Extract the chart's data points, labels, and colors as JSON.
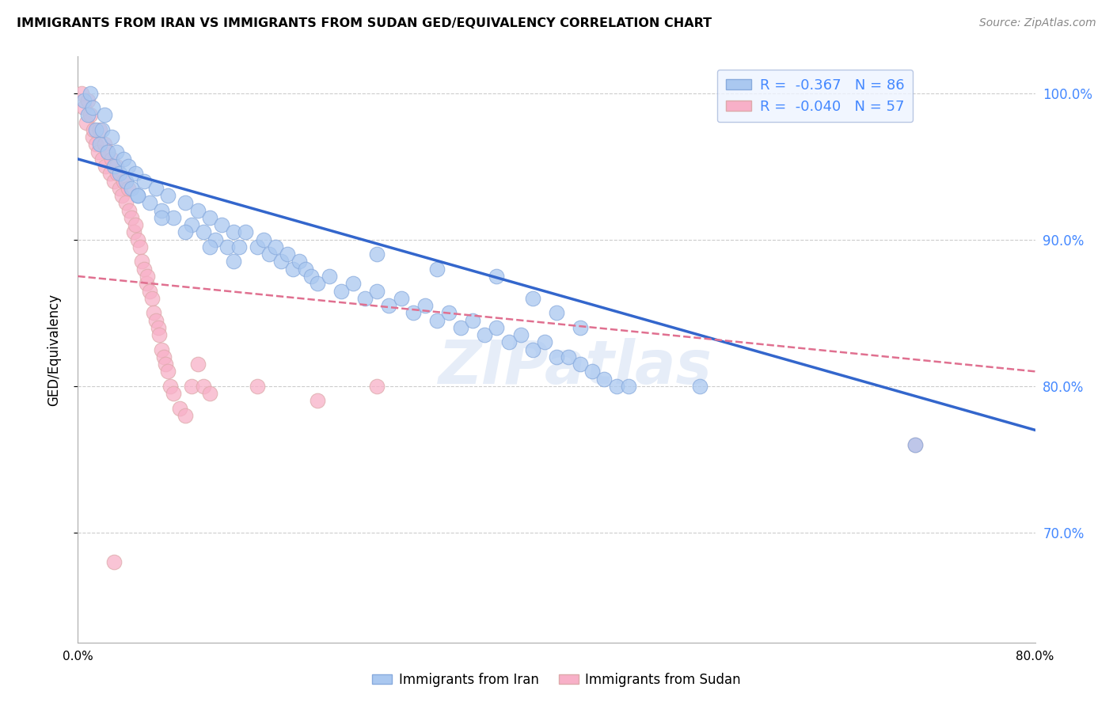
{
  "title": "IMMIGRANTS FROM IRAN VS IMMIGRANTS FROM SUDAN GED/EQUIVALENCY CORRELATION CHART",
  "source": "Source: ZipAtlas.com",
  "ylabel": "GED/Equivalency",
  "yticks": [
    0.7,
    0.8,
    0.9,
    1.0
  ],
  "ytick_labels": [
    "70.0%",
    "80.0%",
    "90.0%",
    "100.0%"
  ],
  "xlim": [
    0.0,
    0.8
  ],
  "ylim": [
    0.625,
    1.025
  ],
  "iran_R": -0.367,
  "iran_N": 86,
  "sudan_R": -0.04,
  "sudan_N": 57,
  "iran_color": "#aac8f0",
  "iran_edge_color": "#88aadd",
  "iran_line_color": "#3366cc",
  "sudan_color": "#f8b0c8",
  "sudan_edge_color": "#ddaaaa",
  "sudan_line_color": "#e07090",
  "iran_scatter_x": [
    0.005,
    0.008,
    0.01,
    0.012,
    0.015,
    0.018,
    0.02,
    0.022,
    0.025,
    0.028,
    0.03,
    0.032,
    0.035,
    0.038,
    0.04,
    0.042,
    0.045,
    0.048,
    0.05,
    0.055,
    0.06,
    0.065,
    0.07,
    0.075,
    0.08,
    0.09,
    0.095,
    0.1,
    0.105,
    0.11,
    0.115,
    0.12,
    0.125,
    0.13,
    0.135,
    0.14,
    0.15,
    0.155,
    0.16,
    0.165,
    0.17,
    0.175,
    0.18,
    0.185,
    0.19,
    0.195,
    0.2,
    0.21,
    0.22,
    0.23,
    0.24,
    0.25,
    0.26,
    0.27,
    0.28,
    0.29,
    0.3,
    0.31,
    0.32,
    0.33,
    0.34,
    0.35,
    0.36,
    0.37,
    0.38,
    0.39,
    0.4,
    0.41,
    0.42,
    0.43,
    0.44,
    0.45,
    0.46,
    0.25,
    0.3,
    0.35,
    0.38,
    0.4,
    0.42,
    0.05,
    0.07,
    0.09,
    0.11,
    0.13,
    0.7,
    0.52
  ],
  "iran_scatter_y": [
    0.995,
    0.985,
    1.0,
    0.99,
    0.975,
    0.965,
    0.975,
    0.985,
    0.96,
    0.97,
    0.95,
    0.96,
    0.945,
    0.955,
    0.94,
    0.95,
    0.935,
    0.945,
    0.93,
    0.94,
    0.925,
    0.935,
    0.92,
    0.93,
    0.915,
    0.925,
    0.91,
    0.92,
    0.905,
    0.915,
    0.9,
    0.91,
    0.895,
    0.905,
    0.895,
    0.905,
    0.895,
    0.9,
    0.89,
    0.895,
    0.885,
    0.89,
    0.88,
    0.885,
    0.88,
    0.875,
    0.87,
    0.875,
    0.865,
    0.87,
    0.86,
    0.865,
    0.855,
    0.86,
    0.85,
    0.855,
    0.845,
    0.85,
    0.84,
    0.845,
    0.835,
    0.84,
    0.83,
    0.835,
    0.825,
    0.83,
    0.82,
    0.82,
    0.815,
    0.81,
    0.805,
    0.8,
    0.8,
    0.89,
    0.88,
    0.875,
    0.86,
    0.85,
    0.84,
    0.93,
    0.915,
    0.905,
    0.895,
    0.885,
    0.76,
    0.8
  ],
  "sudan_scatter_x": [
    0.003,
    0.005,
    0.007,
    0.008,
    0.01,
    0.012,
    0.013,
    0.015,
    0.017,
    0.018,
    0.02,
    0.022,
    0.023,
    0.025,
    0.027,
    0.028,
    0.03,
    0.032,
    0.033,
    0.035,
    0.037,
    0.038,
    0.04,
    0.042,
    0.043,
    0.045,
    0.047,
    0.048,
    0.05,
    0.052,
    0.053,
    0.055,
    0.057,
    0.058,
    0.06,
    0.062,
    0.063,
    0.065,
    0.067,
    0.068,
    0.07,
    0.072,
    0.073,
    0.075,
    0.077,
    0.08,
    0.085,
    0.09,
    0.095,
    0.1,
    0.105,
    0.11,
    0.15,
    0.2,
    0.25,
    0.7,
    0.03
  ],
  "sudan_scatter_y": [
    1.0,
    0.99,
    0.98,
    0.995,
    0.985,
    0.97,
    0.975,
    0.965,
    0.96,
    0.975,
    0.955,
    0.965,
    0.95,
    0.96,
    0.945,
    0.955,
    0.94,
    0.95,
    0.945,
    0.935,
    0.93,
    0.94,
    0.925,
    0.935,
    0.92,
    0.915,
    0.905,
    0.91,
    0.9,
    0.895,
    0.885,
    0.88,
    0.87,
    0.875,
    0.865,
    0.86,
    0.85,
    0.845,
    0.84,
    0.835,
    0.825,
    0.82,
    0.815,
    0.81,
    0.8,
    0.795,
    0.785,
    0.78,
    0.8,
    0.815,
    0.8,
    0.795,
    0.8,
    0.79,
    0.8,
    0.76,
    0.68
  ],
  "watermark_text": "ZIPatlas",
  "iran_trendline": [
    0.0,
    0.955,
    0.8,
    0.77
  ],
  "sudan_trendline": [
    0.0,
    0.875,
    0.8,
    0.81
  ],
  "legend_facecolor": "#eef4ff",
  "legend_edgecolor": "#aabbdd",
  "grid_color": "#cccccc",
  "tick_color_right": "#4488ff",
  "xtick_positions": [
    0.0,
    0.1,
    0.2,
    0.3,
    0.4,
    0.5,
    0.6,
    0.7,
    0.8
  ]
}
